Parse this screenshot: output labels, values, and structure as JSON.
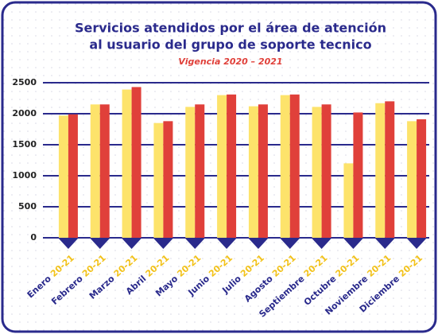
{
  "chart_data": {
    "type": "bar",
    "title": [
      "Servicios atendidos por el área de atención",
      "al usuario del grupo de soporte tecnico"
    ],
    "subtitle": "Vigencia 2020 – 2021",
    "categories": [
      "Enero 20-21",
      "Febrero 20-21",
      "Marzo 20-21",
      "Abril 20-21",
      "Mayo 20-21",
      "Junio 20-21",
      "Julio 20-21",
      "Agosto 20-21",
      "Septiembre 20-21",
      "Octubre 20-21",
      "Noviembre 20-21",
      "Diciembre 20-21"
    ],
    "series": [
      {
        "color": "#fde36b",
        "values": [
          1970,
          2150,
          2390,
          1850,
          2110,
          2300,
          2120,
          2300,
          2110,
          1200,
          2170,
          1880
        ]
      },
      {
        "color": "#e0403a",
        "values": [
          1990,
          2150,
          2430,
          1880,
          2150,
          2310,
          2150,
          2310,
          2150,
          2020,
          2200,
          1910
        ]
      }
    ],
    "ylim": [
      0,
      2500
    ],
    "yticks": [
      0,
      500,
      1000,
      1500,
      2000,
      2500
    ],
    "grid": true
  }
}
